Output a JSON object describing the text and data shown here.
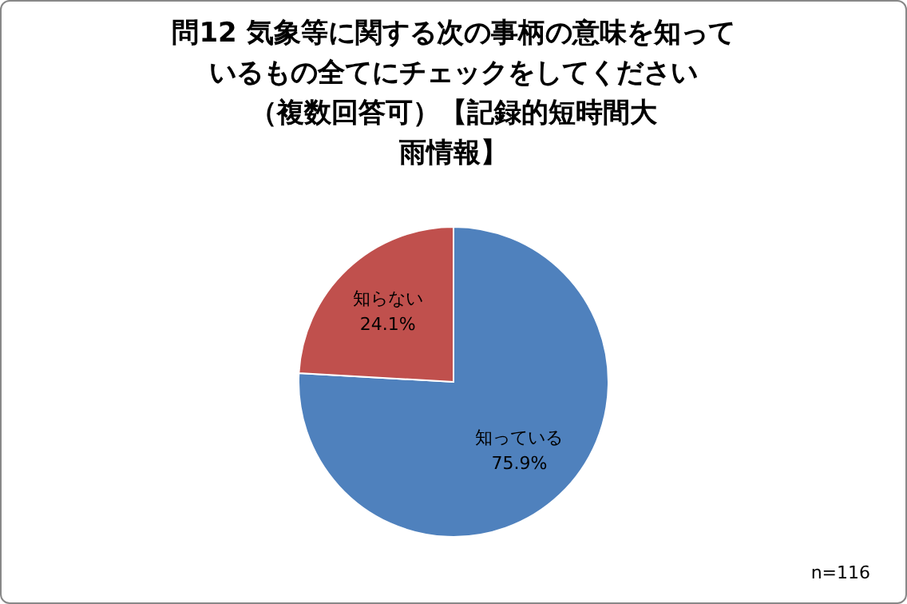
{
  "chart_data": {
    "type": "pie",
    "title": "問12  気象等に関する次の事柄の意味を知っているもの全てにチェックをしてください",
    "subtitle": "（複数回答可）【記録的短時間大雨情報】",
    "categories": [
      "知っている",
      "知らない"
    ],
    "values": [
      75.9,
      24.1
    ],
    "colors": [
      "#4f81bd",
      "#c0504d"
    ],
    "value_labels": [
      "75.9%",
      "24.1%"
    ],
    "legend": false,
    "annotations": [
      "n=116"
    ]
  }
}
